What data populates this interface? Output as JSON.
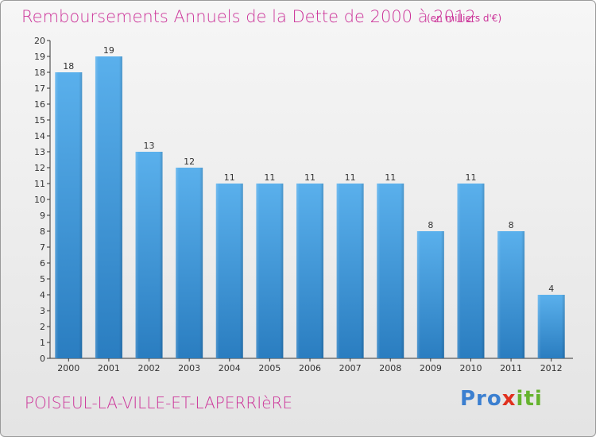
{
  "header": {
    "title": "Remboursements Annuels de la Dette de 2000 à 2012",
    "unit": "(en milliers d'€)"
  },
  "footer": {
    "city": "POISEUL-LA-VILLE-ET-LAPERRIèRE",
    "logo": [
      "Pro",
      "x",
      "iti"
    ]
  },
  "colors": {
    "title": "#cc3399",
    "bar_top": "#5ab0ec",
    "bar_bottom": "#2a7dc0",
    "axis": "#333333"
  },
  "chart_data": {
    "type": "bar",
    "title": "Remboursements Annuels de la Dette de 2000 à 2012",
    "categories": [
      "2000",
      "2001",
      "2002",
      "2003",
      "2004",
      "2005",
      "2006",
      "2007",
      "2008",
      "2009",
      "2010",
      "2011",
      "2012"
    ],
    "values": [
      18,
      19,
      13,
      12,
      11,
      11,
      11,
      11,
      11,
      8,
      11,
      8,
      4
    ],
    "ylim": [
      0,
      20
    ],
    "yticks": [
      0,
      1,
      2,
      3,
      4,
      5,
      6,
      7,
      8,
      9,
      10,
      11,
      12,
      13,
      14,
      15,
      16,
      17,
      18,
      19,
      20
    ],
    "grid": false,
    "xlabel": "",
    "ylabel": ""
  }
}
